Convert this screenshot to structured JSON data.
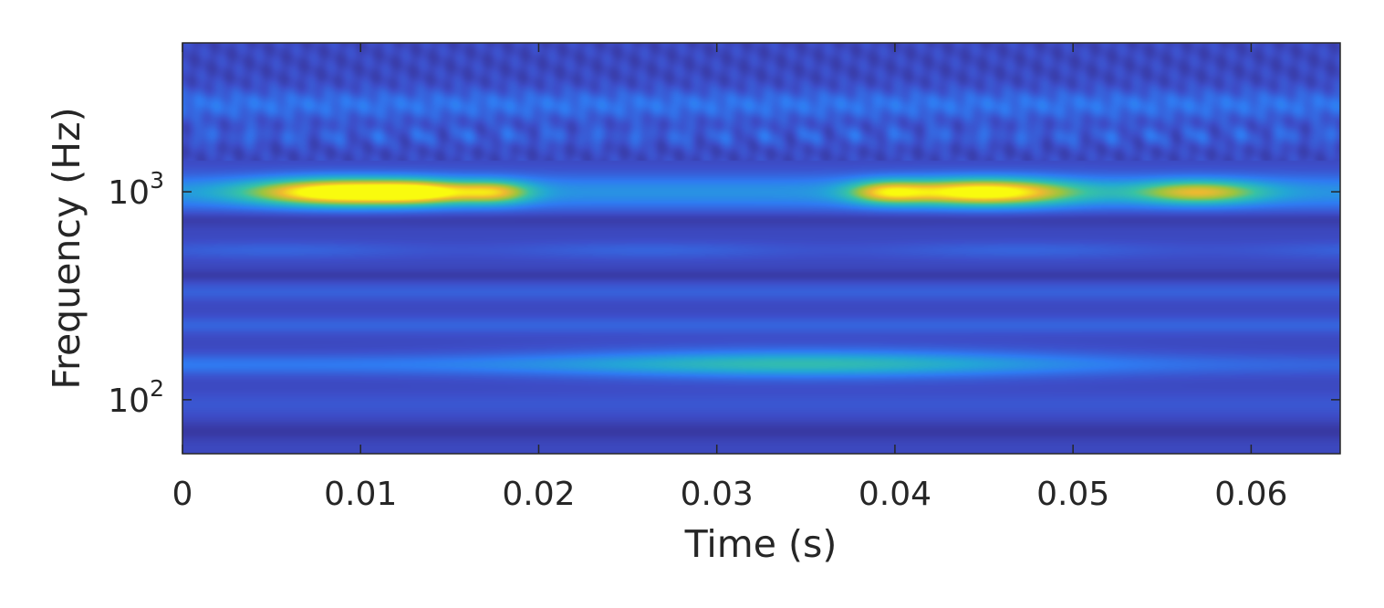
{
  "chart_data": {
    "type": "heatmap",
    "title": "",
    "xlabel": "Time (s)",
    "ylabel": "Frequency (Hz)",
    "xlim": [
      0,
      0.065
    ],
    "ylim_hz": [
      55,
      5200
    ],
    "y_scale": "log",
    "grid": false,
    "colormap": "parula",
    "colormap_stops": [
      "#352a87",
      "#3d4ec9",
      "#2f7bf2",
      "#23a6d6",
      "#36c2a6",
      "#9cc43f",
      "#eeba30",
      "#f9fb0e"
    ],
    "x_ticks": [
      {
        "value": 0,
        "label": "0"
      },
      {
        "value": 0.01,
        "label": "0.01"
      },
      {
        "value": 0.02,
        "label": "0.02"
      },
      {
        "value": 0.03,
        "label": "0.03"
      },
      {
        "value": 0.04,
        "label": "0.04"
      },
      {
        "value": 0.05,
        "label": "0.05"
      },
      {
        "value": 0.06,
        "label": "0.06"
      }
    ],
    "y_ticks": [
      {
        "value": 100,
        "base": "10",
        "exp": "2"
      },
      {
        "value": 1000,
        "base": "10",
        "exp": "3"
      }
    ],
    "features": [
      {
        "t": 0.009,
        "f": 1000,
        "intensity": 0.97,
        "t_width": 0.0035,
        "log_f_width": 0.045
      },
      {
        "t": 0.0135,
        "f": 1000,
        "intensity": 0.55,
        "t_width": 0.002,
        "log_f_width": 0.04
      },
      {
        "t": 0.0175,
        "f": 1000,
        "intensity": 0.55,
        "t_width": 0.0015,
        "log_f_width": 0.04
      },
      {
        "t": 0.045,
        "f": 1000,
        "intensity": 0.88,
        "t_width": 0.0035,
        "log_f_width": 0.045
      },
      {
        "t": 0.0395,
        "f": 1000,
        "intensity": 0.5,
        "t_width": 0.0015,
        "log_f_width": 0.04
      },
      {
        "t": 0.057,
        "f": 1000,
        "intensity": 0.58,
        "t_width": 0.0025,
        "log_f_width": 0.04
      },
      {
        "t": 0.035,
        "f": 150,
        "intensity": 0.35,
        "t_width": 0.01,
        "log_f_width": 0.05
      }
    ]
  }
}
